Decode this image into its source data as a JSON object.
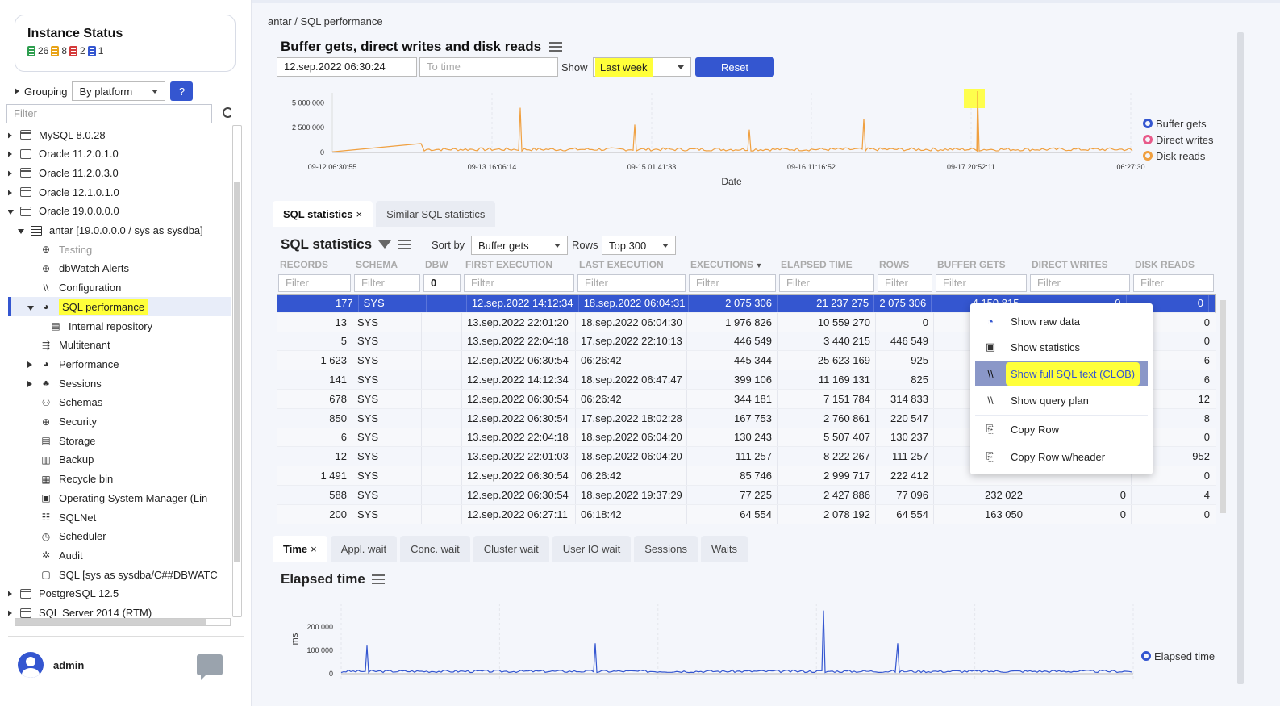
{
  "sidebar": {
    "instance_status": {
      "title": "Instance Status",
      "counts": [
        {
          "value": "26",
          "color": "#2e9e4f"
        },
        {
          "value": "8",
          "color": "#e8a317"
        },
        {
          "value": "2",
          "color": "#d43a3a"
        },
        {
          "value": "1",
          "color": "#3456d0"
        }
      ]
    },
    "grouping_label": "Grouping",
    "grouping_value": "By platform",
    "help_label": "?",
    "filter_placeholder": "Filter",
    "tree": [
      {
        "label": "MySQL 8.0.28",
        "icon": "window-icon"
      },
      {
        "label": "Oracle 11.2.0.1.0",
        "icon": "window-icon"
      },
      {
        "label": "Oracle 11.2.0.3.0",
        "icon": "window-icon"
      },
      {
        "label": "Oracle 12.1.0.1.0",
        "icon": "window-icon"
      },
      {
        "label": "Oracle 19.0.0.0.0",
        "icon": "window-icon"
      },
      {
        "label": "antar [19.0.0.0.0 / sys as sysdba]",
        "icon": "database-icon"
      },
      {
        "label": "Testing",
        "icon": "globe-icon"
      },
      {
        "label": "dbWatch Alerts",
        "icon": "globe-icon"
      },
      {
        "label": "Configuration",
        "icon": "config-icon"
      },
      {
        "label": "SQL performance",
        "icon": "pie-icon"
      },
      {
        "label": "Internal repository",
        "icon": "repository-icon"
      },
      {
        "label": "Multitenant",
        "icon": "multitenant-icon"
      },
      {
        "label": "Performance",
        "icon": "pie-icon"
      },
      {
        "label": "Sessions",
        "icon": "users-icon"
      },
      {
        "label": "Schemas",
        "icon": "schema-icon"
      },
      {
        "label": "Security",
        "icon": "globe-icon"
      },
      {
        "label": "Storage",
        "icon": "storage-icon"
      },
      {
        "label": "Backup",
        "icon": "backup-icon"
      },
      {
        "label": "Recycle bin",
        "icon": "recycle-icon"
      },
      {
        "label": "Operating System Manager (Lin",
        "icon": "os-icon"
      },
      {
        "label": "SQLNet",
        "icon": "network-icon"
      },
      {
        "label": "Scheduler",
        "icon": "clock-icon"
      },
      {
        "label": "Audit",
        "icon": "gear-icon"
      },
      {
        "label": "SQL [sys as sysdba/C##DBWATC",
        "icon": "sql-icon"
      },
      {
        "label": "PostgreSQL 12.5",
        "icon": "window-icon"
      },
      {
        "label": "SQL Server 2014 (RTM)",
        "icon": "window-icon"
      }
    ],
    "user": "admin"
  },
  "breadcrumb": {
    "parent": "antar",
    "sep": "/",
    "current": "SQL performance"
  },
  "top_chart": {
    "title": "Buffer gets, direct writes and disk reads",
    "from_time": "12.sep.2022 06:30:24",
    "to_placeholder": "To time",
    "show_label": "Show",
    "show_value": "Last week",
    "reset_label": "Reset",
    "xlabel": "Date"
  },
  "chart_data": [
    {
      "type": "line",
      "title": "Buffer gets, direct writes and disk reads",
      "xlabel": "Date",
      "ylabel": "",
      "ylim": [
        0,
        6000000
      ],
      "yticks": [
        "5 000 000",
        "2 500 000",
        "0"
      ],
      "xticks": [
        "09-12 06:30:55",
        "09-13 16:06:14",
        "09-15 01:41:33",
        "09-16 11:16:52",
        "09-17 20:52:11",
        "06:27:30"
      ],
      "series": [
        {
          "name": "Buffer gets",
          "color": "#3456d0"
        },
        {
          "name": "Direct writes",
          "color": "#e85a8a"
        },
        {
          "name": "Disk reads",
          "color": "#f0a040",
          "values": [
            0,
            60000,
            900000,
            150000,
            4500000,
            150000,
            2800000,
            150000,
            2300000,
            150000,
            3400000,
            150000,
            6000000,
            150000,
            320000
          ]
        }
      ]
    },
    {
      "type": "line",
      "title": "Elapsed time",
      "ylabel": "ms",
      "ylim": [
        0,
        300000
      ],
      "yticks": [
        "200 000",
        "100 000",
        "0"
      ],
      "series": [
        {
          "name": "Elapsed time",
          "color": "#3456d0",
          "values": [
            0,
            120000,
            5000,
            130000,
            5000,
            270000,
            5000,
            130000,
            5000,
            5000
          ]
        }
      ]
    }
  ],
  "tabs_top": [
    {
      "label": "SQL statistics",
      "close": "×"
    },
    {
      "label": "Similar SQL statistics"
    }
  ],
  "stats": {
    "title": "SQL statistics",
    "sort_label": "Sort by",
    "sort_value": "Buffer gets",
    "rows_label": "Rows",
    "rows_value": "Top 300",
    "columns": [
      "RECORDS",
      "SCHEMA",
      "DBW",
      "FIRST EXECUTION",
      "LAST EXECUTION",
      "EXECUTIONS",
      "ELAPSED TIME",
      "ROWS",
      "BUFFER GETS",
      "DIRECT WRITES",
      "DISK READS"
    ],
    "filters": [
      "Filter",
      "Filter",
      "0",
      "Filter",
      "Filter",
      "Filter",
      "Filter",
      "Filter",
      "Filter",
      "Filter",
      "Filter"
    ],
    "rows": [
      [
        "177",
        "SYS",
        "",
        "12.sep.2022 14:12:34",
        "18.sep.2022 06:04:31",
        "2 075 306",
        "21 237 275",
        "2 075 306",
        "4 150 815",
        "0",
        "0"
      ],
      [
        "13",
        "SYS",
        "",
        "13.sep.2022 22:01:20",
        "18.sep.2022 06:04:30",
        "1 976 826",
        "10 559 270",
        "0",
        "",
        "",
        "0"
      ],
      [
        "5",
        "SYS",
        "",
        "13.sep.2022 22:04:18",
        "17.sep.2022 22:10:13",
        "446 549",
        "3 440 215",
        "446 549",
        "",
        "",
        "0"
      ],
      [
        "1 623",
        "SYS",
        "",
        "12.sep.2022 06:30:54",
        "06:26:42",
        "445 344",
        "25 623 169",
        "925",
        "",
        "",
        "6"
      ],
      [
        "141",
        "SYS",
        "",
        "12.sep.2022 14:12:34",
        "18.sep.2022 06:47:47",
        "399 106",
        "11 169 131",
        "825",
        "",
        "",
        "6"
      ],
      [
        "678",
        "SYS",
        "",
        "12.sep.2022 06:30:54",
        "06:26:42",
        "344 181",
        "7 151 784",
        "314 833",
        "",
        "",
        "12"
      ],
      [
        "850",
        "SYS",
        "",
        "12.sep.2022 06:30:54",
        "17.sep.2022 18:02:28",
        "167 753",
        "2 760 861",
        "220 547",
        "",
        "",
        "8"
      ],
      [
        "6",
        "SYS",
        "",
        "13.sep.2022 22:04:18",
        "18.sep.2022 06:04:20",
        "130 243",
        "5 507 407",
        "130 237",
        "",
        "",
        "0"
      ],
      [
        "12",
        "SYS",
        "",
        "13.sep.2022 22:01:03",
        "18.sep.2022 06:04:20",
        "111 257",
        "8 222 267",
        "111 257",
        "",
        "",
        "952"
      ],
      [
        "1 491",
        "SYS",
        "",
        "12.sep.2022 06:30:54",
        "06:26:42",
        "85 746",
        "2 999 717",
        "222 412",
        "",
        "",
        "0"
      ],
      [
        "588",
        "SYS",
        "",
        "12.sep.2022 06:30:54",
        "18.sep.2022 19:37:29",
        "77 225",
        "2 427 886",
        "77 096",
        "232 022",
        "0",
        "4"
      ],
      [
        "200",
        "SYS",
        "",
        "12.sep.2022 06:27:11",
        "06:18:42",
        "64 554",
        "2 078 192",
        "64 554",
        "163 050",
        "0",
        "0"
      ]
    ]
  },
  "context_menu": [
    {
      "label": "Show raw data",
      "icon": "raw-data-icon",
      "glyph": "◔"
    },
    {
      "label": "Show statistics",
      "icon": "statistics-icon",
      "glyph": "▣"
    },
    {
      "label": "Show full SQL text (CLOB)",
      "icon": "sql-text-icon",
      "glyph": "\\\\"
    },
    {
      "label": "Show query plan",
      "icon": "query-plan-icon",
      "glyph": "\\\\"
    },
    {
      "label": "Copy Row",
      "icon": "copy-icon",
      "glyph": "⎘"
    },
    {
      "label": "Copy Row w/header",
      "icon": "copy-header-icon",
      "glyph": "⎘"
    }
  ],
  "tabs_bottom": [
    {
      "label": "Time",
      "close": "×"
    },
    {
      "label": "Appl. wait"
    },
    {
      "label": "Conc. wait"
    },
    {
      "label": "Cluster wait"
    },
    {
      "label": "User IO wait"
    },
    {
      "label": "Sessions"
    },
    {
      "label": "Waits"
    }
  ],
  "elapsed": {
    "title": "Elapsed time",
    "ylabel": "ms",
    "legend": "Elapsed time"
  }
}
